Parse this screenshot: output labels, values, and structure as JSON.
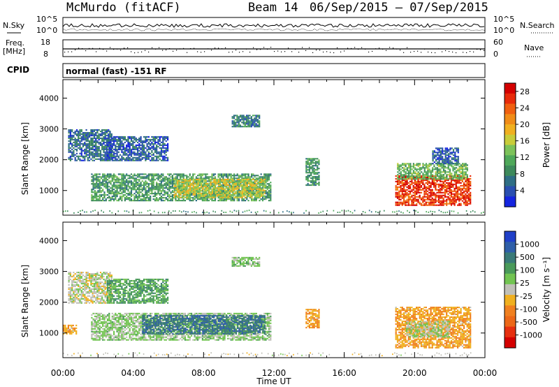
{
  "header": {
    "station": "McMurdo (fitACF)",
    "beam": "Beam 14",
    "date_range": "06/Sep/2015 – 07/Sep/2015"
  },
  "status": {
    "nsky_label": "N.Sky",
    "nsky_ticks": [
      "10^5",
      "10^0"
    ],
    "nsearch_label": "N.Search",
    "nsearch_ticks": [
      "10^5",
      "10^0"
    ],
    "freq_label_1": "Freq.",
    "freq_label_2": "[MHz]",
    "freq_ticks": [
      "18",
      "8"
    ],
    "nave_label": "Nave",
    "nave_ticks": [
      "60",
      "0"
    ],
    "cpid_label": "CPID",
    "cpid_text": "normal (fast) -151 RF"
  },
  "colors": {
    "power": [
      "#1525e0",
      "#2a4fb0",
      "#2f6e85",
      "#3e8a5c",
      "#4fa85a",
      "#7cc25a",
      "#c8cc3a",
      "#f0b020",
      "#f08c18",
      "#f06010",
      "#e82a0a",
      "#d40000"
    ],
    "velocity": [
      "#2040c8",
      "#2f5fa8",
      "#3a7a78",
      "#4a9a5a",
      "#72c452",
      "#c0c0b8",
      "#f0b020",
      "#f08020",
      "#ec6818",
      "#e63010",
      "#d40000"
    ]
  },
  "chart_data": [
    {
      "type": "heatmap",
      "title": "",
      "ylabel": "Slant Range [km]",
      "xlabel": "Time UT",
      "ylim": [
        200,
        4600
      ],
      "xlim": [
        "00:00",
        "24:00"
      ],
      "yticks": [
        1000,
        2000,
        3000,
        4000
      ],
      "xticks": [
        "00:00",
        "04:00",
        "08:00",
        "12:00",
        "16:00",
        "20:00",
        "00:00"
      ],
      "colorbar": {
        "label": "Power [dB]",
        "ticks": [
          "4",
          "8",
          "12",
          "16",
          "20",
          "24",
          "28"
        ],
        "range": [
          0,
          30
        ]
      },
      "patches": [
        {
          "t0": 1.6,
          "t1": 11.8,
          "r0": 700,
          "r1": 1600,
          "v": 10
        },
        {
          "t0": 6.3,
          "t1": 11.5,
          "r0": 800,
          "r1": 1400,
          "v": 16
        },
        {
          "t0": 9.6,
          "t1": 11.2,
          "r0": 3100,
          "r1": 3500,
          "v": 7
        },
        {
          "t0": 0.3,
          "t1": 2.8,
          "r0": 2000,
          "r1": 3000,
          "v": 6
        },
        {
          "t0": 2.5,
          "t1": 6.0,
          "r0": 2000,
          "r1": 2800,
          "v": 5
        },
        {
          "t0": 13.8,
          "t1": 14.6,
          "r0": 1200,
          "r1": 2100,
          "v": 9
        },
        {
          "t0": 18.9,
          "t1": 23.2,
          "r0": 550,
          "r1": 1500,
          "v": 26
        },
        {
          "t0": 19.0,
          "t1": 23.0,
          "r0": 1400,
          "r1": 1900,
          "v": 12
        },
        {
          "t0": 21.0,
          "t1": 22.5,
          "r0": 1900,
          "r1": 2400,
          "v": 5
        }
      ]
    },
    {
      "type": "heatmap",
      "title": "",
      "ylabel": "Slant Range [km]",
      "xlabel": "Time UT",
      "ylim": [
        200,
        4600
      ],
      "xlim": [
        "00:00",
        "24:00"
      ],
      "yticks": [
        1000,
        2000,
        3000,
        4000
      ],
      "xticks": [
        "00:00",
        "04:00",
        "08:00",
        "12:00",
        "16:00",
        "20:00",
        "00:00"
      ],
      "colorbar": {
        "label": "Velocity [m s⁻¹]",
        "ticks": [
          "1000",
          "500",
          "100",
          "25",
          "-25",
          "-100",
          "-500",
          "-1000"
        ],
        "range": [
          -1200,
          1200
        ]
      },
      "patches": [
        {
          "t0": 1.6,
          "t1": 11.8,
          "r0": 800,
          "r1": 1700,
          "v": 150
        },
        {
          "t0": 4.5,
          "t1": 11.5,
          "r0": 1000,
          "r1": 1600,
          "v": 700
        },
        {
          "t0": 9.6,
          "t1": 11.2,
          "r0": 3200,
          "r1": 3500,
          "v": 200
        },
        {
          "t0": 0.3,
          "t1": 2.8,
          "r0": 2000,
          "r1": 3000,
          "v": 10
        },
        {
          "t0": 2.5,
          "t1": 6.0,
          "r0": 2000,
          "r1": 2800,
          "v": 400
        },
        {
          "t0": 0.0,
          "t1": 0.8,
          "r0": 1000,
          "r1": 1300,
          "v": -300
        },
        {
          "t0": 13.8,
          "t1": 14.6,
          "r0": 1200,
          "r1": 1800,
          "v": -300
        },
        {
          "t0": 18.9,
          "t1": 23.2,
          "r0": 550,
          "r1": 1900,
          "v": -300
        },
        {
          "t0": 19.5,
          "t1": 22.0,
          "r0": 900,
          "r1": 1400,
          "v": 60
        }
      ]
    }
  ]
}
